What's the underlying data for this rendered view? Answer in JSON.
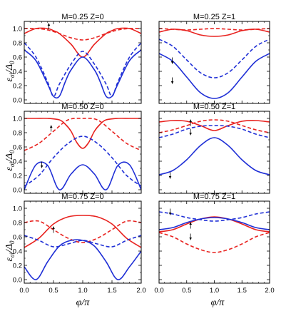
{
  "figure": {
    "xlabel_base": "φ/π",
    "ylabel_base": "ε",
    "ylabel_sub": "σl",
    "ylabel_div": "/Δ",
    "ylabel_div_sub": "0",
    "colors": {
      "red": "#e8221f",
      "blue": "#1f2fd6"
    }
  },
  "chart_data": [
    {
      "type": "line",
      "title": "M=0.25  Z=0",
      "xlim": [
        0,
        2
      ],
      "ylim": [
        -0.05,
        1.1
      ],
      "xticks": [
        "0.0",
        "0.5",
        "1.0",
        "1.5",
        "2.0"
      ],
      "yticks": [
        "0.0",
        "0.2",
        "0.4",
        "0.6",
        "0.8",
        "1.0"
      ],
      "show_xticklabels": false,
      "show_yticklabels": true,
      "arrows": [
        {
          "x": 0.42,
          "y": 1.03,
          "dir": "up"
        }
      ],
      "series": [
        {
          "color": "red",
          "style": "solid",
          "x": [
            0,
            0.2,
            0.4,
            0.5,
            0.6,
            0.8,
            1.0,
            1.2,
            1.4,
            1.5,
            1.6,
            1.8,
            2.0
          ],
          "y": [
            0.93,
            1.0,
            1.0,
            0.97,
            0.93,
            0.78,
            0.6,
            0.78,
            0.93,
            0.97,
            1.0,
            1.0,
            0.93
          ]
        },
        {
          "color": "red",
          "style": "dashed",
          "x": [
            0,
            0.2,
            0.4,
            0.6,
            0.8,
            1.0,
            1.2,
            1.4,
            1.6,
            1.8,
            2.0
          ],
          "y": [
            1.0,
            1.0,
            0.98,
            0.93,
            0.87,
            0.84,
            0.87,
            0.93,
            0.98,
            1.0,
            1.0
          ]
        },
        {
          "color": "blue",
          "style": "solid",
          "x": [
            0,
            0.2,
            0.4,
            0.5,
            0.6,
            0.7,
            0.8,
            1.0,
            1.2,
            1.3,
            1.4,
            1.5,
            1.6,
            1.8,
            2.0
          ],
          "y": [
            0.7,
            0.55,
            0.22,
            0.05,
            0.05,
            0.25,
            0.42,
            0.6,
            0.42,
            0.25,
            0.05,
            0.05,
            0.22,
            0.55,
            0.7
          ]
        },
        {
          "color": "blue",
          "style": "dashed",
          "x": [
            0,
            0.2,
            0.4,
            0.5,
            0.6,
            0.8,
            1.0,
            1.2,
            1.4,
            1.5,
            1.6,
            1.8,
            2.0
          ],
          "y": [
            0.8,
            0.6,
            0.25,
            0.05,
            0.22,
            0.5,
            0.68,
            0.5,
            0.22,
            0.05,
            0.25,
            0.6,
            0.8
          ]
        }
      ]
    },
    {
      "type": "line",
      "title": "M=0.25  Z=1",
      "xlim": [
        0,
        2
      ],
      "ylim": [
        -0.05,
        1.1
      ],
      "xticks": [
        "0.0",
        "0.5",
        "1.0",
        "1.5",
        "2.0"
      ],
      "yticks": [
        "0.0",
        "0.2",
        "0.4",
        "0.6",
        "0.8",
        "1.0"
      ],
      "show_xticklabels": false,
      "show_yticklabels": false,
      "arrows": [
        {
          "x": 0.24,
          "y": 0.55,
          "dir": "down"
        },
        {
          "x": 0.24,
          "y": 0.27,
          "dir": "down"
        }
      ],
      "series": [
        {
          "color": "red",
          "style": "solid",
          "x": [
            0,
            0.25,
            0.5,
            0.75,
            1.0,
            1.25,
            1.5,
            1.75,
            2.0
          ],
          "y": [
            0.95,
            0.99,
            0.97,
            0.91,
            0.89,
            0.91,
            0.97,
            0.99,
            0.95
          ]
        },
        {
          "color": "red",
          "style": "dashed",
          "x": [
            0,
            0.25,
            0.5,
            0.75,
            1.0,
            1.25,
            1.5,
            1.75,
            2.0
          ],
          "y": [
            1.0,
            0.99,
            0.98,
            0.99,
            1.0,
            0.99,
            0.98,
            0.99,
            1.0
          ]
        },
        {
          "color": "blue",
          "style": "solid",
          "x": [
            0,
            0.25,
            0.5,
            0.75,
            1.0,
            1.25,
            1.5,
            1.75,
            2.0
          ],
          "y": [
            0.65,
            0.54,
            0.32,
            0.1,
            0.02,
            0.1,
            0.32,
            0.54,
            0.65
          ]
        },
        {
          "color": "blue",
          "style": "dashed",
          "x": [
            0,
            0.25,
            0.5,
            0.75,
            1.0,
            1.25,
            1.5,
            1.75,
            2.0
          ],
          "y": [
            0.85,
            0.75,
            0.56,
            0.38,
            0.31,
            0.38,
            0.56,
            0.75,
            0.85
          ]
        }
      ]
    },
    {
      "type": "line",
      "title": "M=0.50  Z=0",
      "xlim": [
        0,
        2
      ],
      "ylim": [
        -0.05,
        1.1
      ],
      "xticks": [
        "0.0",
        "0.5",
        "1.0",
        "1.5",
        "2.0"
      ],
      "yticks": [
        "0.0",
        "0.2",
        "0.4",
        "0.6",
        "0.8",
        "1.0"
      ],
      "show_xticklabels": false,
      "show_yticklabels": true,
      "arrows": [
        {
          "x": 0.46,
          "y": 0.86,
          "dir": "up"
        },
        {
          "x": 0.3,
          "y": 0.35,
          "dir": "down"
        }
      ],
      "series": [
        {
          "color": "red",
          "style": "solid",
          "x": [
            0,
            0.2,
            0.4,
            0.6,
            0.7,
            0.8,
            0.9,
            1.0,
            1.1,
            1.2,
            1.3,
            1.4,
            1.6,
            1.8,
            2.0
          ],
          "y": [
            1.0,
            1.0,
            1.0,
            0.98,
            0.92,
            0.82,
            0.66,
            0.58,
            0.66,
            0.82,
            0.92,
            0.98,
            1.0,
            1.0,
            1.0
          ]
        },
        {
          "color": "red",
          "style": "dashed",
          "x": [
            0,
            0.25,
            0.5,
            0.75,
            1.0,
            1.25,
            1.5,
            1.75,
            2.0
          ],
          "y": [
            0.55,
            0.65,
            0.82,
            0.98,
            1.0,
            0.98,
            0.82,
            0.65,
            0.55
          ]
        },
        {
          "color": "blue",
          "style": "solid",
          "x": [
            0,
            0.2,
            0.4,
            0.6,
            0.8,
            1.0,
            1.2,
            1.4,
            1.6,
            1.8,
            2.0
          ],
          "y": [
            0.0,
            0.35,
            0.34,
            0.0,
            0.22,
            0.35,
            0.22,
            0.0,
            0.34,
            0.35,
            0.0
          ]
        },
        {
          "color": "blue",
          "style": "dashed",
          "x": [
            0,
            0.25,
            0.5,
            0.75,
            1.0,
            1.25,
            1.5,
            1.75,
            2.0
          ],
          "y": [
            0.05,
            0.2,
            0.45,
            0.65,
            0.75,
            0.65,
            0.45,
            0.2,
            0.05
          ]
        }
      ]
    },
    {
      "type": "line",
      "title": "M=0.50  Z=1",
      "xlim": [
        0,
        2
      ],
      "ylim": [
        -0.05,
        1.1
      ],
      "xticks": [
        "0.0",
        "0.5",
        "1.0",
        "1.5",
        "2.0"
      ],
      "yticks": [
        "0.0",
        "0.2",
        "0.4",
        "0.6",
        "0.8",
        "1.0"
      ],
      "show_xticklabels": false,
      "show_yticklabels": false,
      "arrows": [
        {
          "x": 0.57,
          "y": 0.94,
          "dir": "up"
        },
        {
          "x": 0.57,
          "y": 0.81,
          "dir": "down"
        },
        {
          "x": 0.2,
          "y": 0.2,
          "dir": "down"
        }
      ],
      "series": [
        {
          "color": "red",
          "style": "solid",
          "x": [
            0,
            0.25,
            0.5,
            0.75,
            1.0,
            1.25,
            1.5,
            1.75,
            2.0
          ],
          "y": [
            0.95,
            0.97,
            0.96,
            0.9,
            0.83,
            0.9,
            0.96,
            0.97,
            0.95
          ]
        },
        {
          "color": "red",
          "style": "dashed",
          "x": [
            0,
            0.25,
            0.5,
            0.75,
            1.0,
            1.25,
            1.5,
            1.75,
            2.0
          ],
          "y": [
            0.8,
            0.84,
            0.9,
            0.96,
            0.98,
            0.96,
            0.9,
            0.84,
            0.8
          ]
        },
        {
          "color": "blue",
          "style": "solid",
          "x": [
            0,
            0.25,
            0.5,
            0.75,
            1.0,
            1.25,
            1.5,
            1.75,
            2.0
          ],
          "y": [
            0.21,
            0.27,
            0.42,
            0.62,
            0.73,
            0.62,
            0.42,
            0.27,
            0.21
          ]
        },
        {
          "color": "blue",
          "style": "dashed",
          "x": [
            0,
            0.25,
            0.5,
            0.75,
            1.0,
            1.25,
            1.5,
            1.75,
            2.0
          ],
          "y": [
            0.73,
            0.78,
            0.85,
            0.89,
            0.9,
            0.89,
            0.85,
            0.78,
            0.73
          ]
        }
      ]
    },
    {
      "type": "line",
      "title": "M=0.75  Z=0",
      "xlim": [
        0,
        2
      ],
      "ylim": [
        -0.05,
        1.1
      ],
      "xticks": [
        "0.0",
        "0.5",
        "1.0",
        "1.5",
        "2.0"
      ],
      "yticks": [
        "0.0",
        "0.2",
        "0.4",
        "0.6",
        "0.8",
        "1.0"
      ],
      "show_xticklabels": true,
      "show_yticklabels": true,
      "arrows": [
        {
          "x": 0.5,
          "y": 0.7,
          "dir": "up"
        }
      ],
      "series": [
        {
          "color": "red",
          "style": "solid",
          "x": [
            0,
            0.25,
            0.5,
            0.75,
            1.0,
            1.25,
            1.5,
            1.75,
            2.0
          ],
          "y": [
            0.45,
            0.58,
            0.78,
            0.88,
            0.9,
            0.88,
            0.78,
            0.58,
            0.45
          ]
        },
        {
          "color": "red",
          "style": "dashed",
          "x": [
            0,
            0.25,
            0.5,
            0.75,
            1.0,
            1.25,
            1.5,
            1.75,
            2.0
          ],
          "y": [
            0.8,
            0.82,
            0.7,
            0.58,
            0.52,
            0.58,
            0.7,
            0.82,
            0.8
          ]
        },
        {
          "color": "blue",
          "style": "solid",
          "x": [
            0,
            0.2,
            0.4,
            0.6,
            0.8,
            1.0,
            1.2,
            1.4,
            1.6,
            1.8,
            2.0
          ],
          "y": [
            0.18,
            0.0,
            0.25,
            0.47,
            0.55,
            0.55,
            0.47,
            0.25,
            0.0,
            0.18,
            0.4
          ]
        },
        {
          "color": "blue",
          "style": "dashed",
          "x": [
            0,
            0.25,
            0.5,
            0.75,
            1.0,
            1.25,
            1.5,
            1.75,
            2.0
          ],
          "y": [
            0.62,
            0.55,
            0.46,
            0.5,
            0.55,
            0.5,
            0.46,
            0.55,
            0.62
          ]
        }
      ]
    },
    {
      "type": "line",
      "title": "M=0.75  Z=1",
      "xlim": [
        0,
        2
      ],
      "ylim": [
        -0.05,
        1.1
      ],
      "xticks": [
        "0.0",
        "0.5",
        "1.0",
        "1.5",
        "2.0"
      ],
      "yticks": [
        "0.0",
        "0.2",
        "0.4",
        "0.6",
        "0.8",
        "1.0"
      ],
      "show_xticklabels": true,
      "show_yticklabels": false,
      "arrows": [
        {
          "x": 0.2,
          "y": 0.95,
          "dir": "down"
        },
        {
          "x": 0.57,
          "y": 0.76,
          "dir": "up"
        },
        {
          "x": 0.57,
          "y": 0.6,
          "dir": "down"
        }
      ],
      "series": [
        {
          "color": "red",
          "style": "solid",
          "x": [
            0,
            0.25,
            0.5,
            0.75,
            1.0,
            1.25,
            1.5,
            1.75,
            2.0
          ],
          "y": [
            0.67,
            0.7,
            0.78,
            0.85,
            0.88,
            0.85,
            0.78,
            0.7,
            0.67
          ]
        },
        {
          "color": "red",
          "style": "dashed",
          "x": [
            0,
            0.25,
            0.5,
            0.75,
            1.0,
            1.25,
            1.5,
            1.75,
            2.0
          ],
          "y": [
            0.66,
            0.6,
            0.5,
            0.42,
            0.38,
            0.42,
            0.5,
            0.6,
            0.66
          ]
        },
        {
          "color": "blue",
          "style": "solid",
          "x": [
            0,
            0.25,
            0.5,
            0.75,
            1.0,
            1.25,
            1.5,
            1.75,
            2.0
          ],
          "y": [
            0.7,
            0.73,
            0.8,
            0.85,
            0.87,
            0.85,
            0.8,
            0.73,
            0.7
          ]
        },
        {
          "color": "blue",
          "style": "dashed",
          "x": [
            0,
            0.25,
            0.5,
            0.75,
            1.0,
            1.25,
            1.5,
            1.75,
            2.0
          ],
          "y": [
            0.95,
            0.92,
            0.87,
            0.84,
            0.82,
            0.84,
            0.87,
            0.92,
            0.95
          ]
        }
      ]
    }
  ]
}
